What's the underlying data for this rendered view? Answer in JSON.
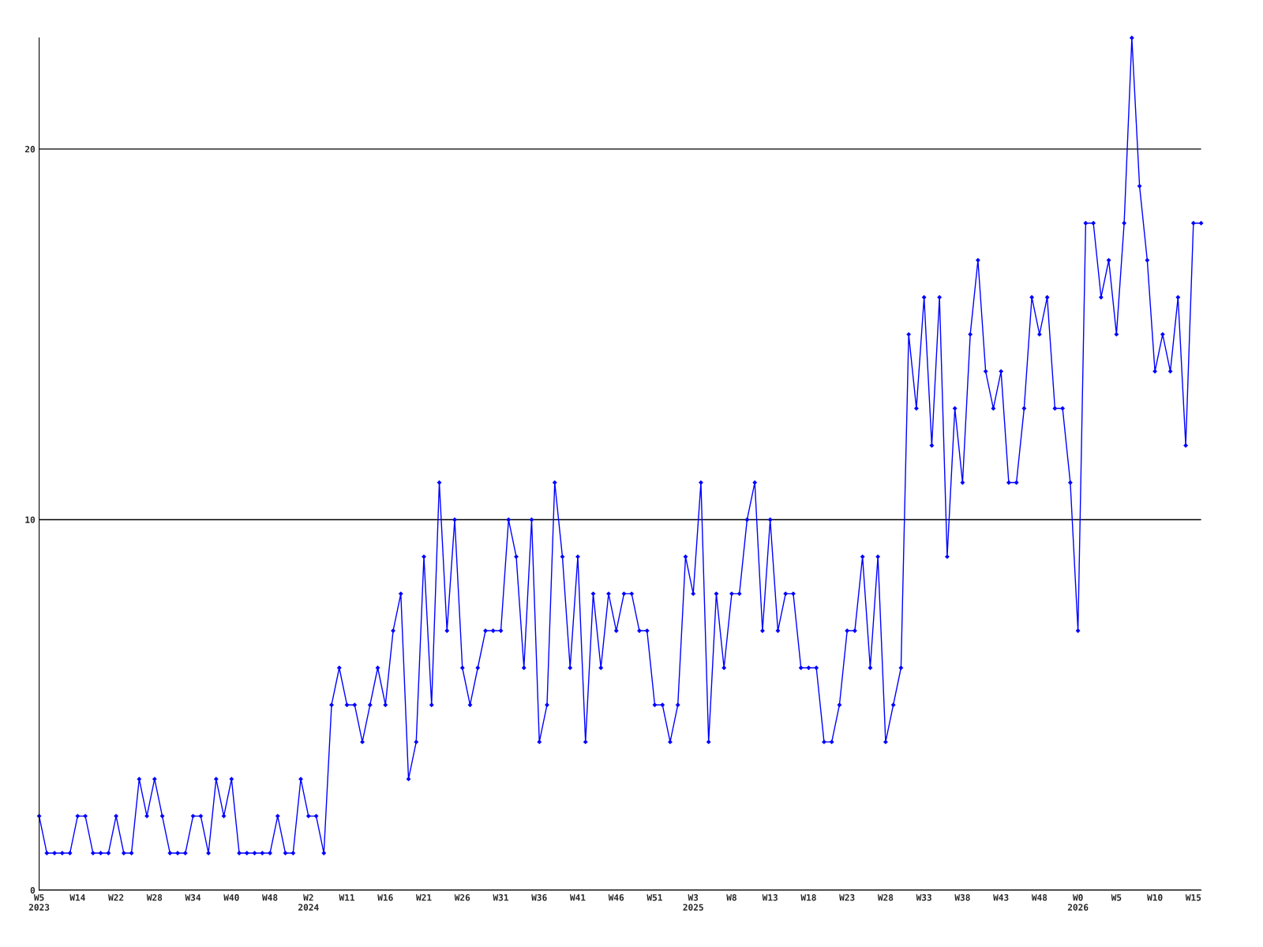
{
  "chart_data": {
    "type": "line",
    "categories": [
      "W5\n2023",
      null,
      null,
      null,
      null,
      "W14",
      null,
      null,
      null,
      null,
      "W22",
      null,
      null,
      null,
      null,
      "W28",
      null,
      null,
      null,
      null,
      "W34",
      null,
      null,
      null,
      null,
      "W40",
      null,
      null,
      null,
      null,
      "W48",
      null,
      null,
      null,
      null,
      "W2\n2024",
      null,
      null,
      null,
      null,
      "W11",
      null,
      null,
      null,
      null,
      "W16",
      null,
      null,
      null,
      null,
      "W21",
      null,
      null,
      null,
      null,
      "W26",
      null,
      null,
      null,
      null,
      "W31",
      null,
      null,
      null,
      null,
      "W36",
      null,
      null,
      null,
      null,
      "W41",
      null,
      null,
      null,
      null,
      "W46",
      null,
      null,
      null,
      null,
      "W51",
      null,
      null,
      null,
      null,
      "W3\n2025",
      null,
      null,
      null,
      null,
      "W8",
      null,
      null,
      null,
      null,
      "W13",
      null,
      null,
      null,
      null,
      "W18",
      null,
      null,
      null,
      null,
      "W23",
      null,
      null,
      null,
      null,
      "W28",
      null,
      null,
      null,
      null,
      "W33",
      null,
      null,
      null,
      null,
      "W38",
      null,
      null,
      null,
      null,
      "W43",
      null,
      null,
      null,
      null,
      "W48",
      null,
      null,
      null,
      null,
      "W0\n2026",
      null,
      null,
      null,
      null,
      "W5",
      null,
      null,
      null,
      null,
      "W10",
      null,
      null,
      null,
      null,
      "W15",
      null
    ],
    "series": [
      {
        "color": "#0000ff",
        "values": [
          2,
          1,
          1,
          1,
          1,
          2,
          2,
          1,
          1,
          1,
          2,
          1,
          1,
          3,
          2,
          3,
          2,
          1,
          1,
          1,
          2,
          2,
          1,
          3,
          2,
          3,
          1,
          1,
          1,
          1,
          1,
          2,
          1,
          1,
          3,
          2,
          2,
          1,
          5,
          6,
          5,
          5,
          4,
          5,
          6,
          5,
          7,
          8,
          3,
          4,
          9,
          5,
          11,
          7,
          10,
          6,
          5,
          6,
          7,
          7,
          7,
          10,
          9,
          6,
          10,
          4,
          5,
          11,
          9,
          6,
          9,
          4,
          8,
          6,
          8,
          7,
          8,
          8,
          7,
          7,
          5,
          5,
          4,
          5,
          9,
          8,
          11,
          4,
          8,
          6,
          8,
          8,
          10,
          11,
          7,
          10,
          7,
          8,
          8,
          6,
          6,
          6,
          4,
          4,
          5,
          7,
          7,
          9,
          6,
          9,
          4,
          5,
          6,
          15,
          13,
          16,
          12,
          16,
          9,
          13,
          11,
          15,
          17,
          14,
          13,
          14,
          11,
          11,
          13,
          16,
          15,
          16,
          13,
          13,
          11,
          7,
          18,
          18,
          16,
          17,
          15,
          18,
          23,
          19,
          17,
          14,
          15,
          14,
          16,
          12,
          18,
          18
        ]
      }
    ],
    "ylim": [
      0,
      23
    ],
    "yticks": [
      0,
      10,
      20
    ],
    "grid": "y",
    "marker": "diamond",
    "line_style": "solid"
  }
}
